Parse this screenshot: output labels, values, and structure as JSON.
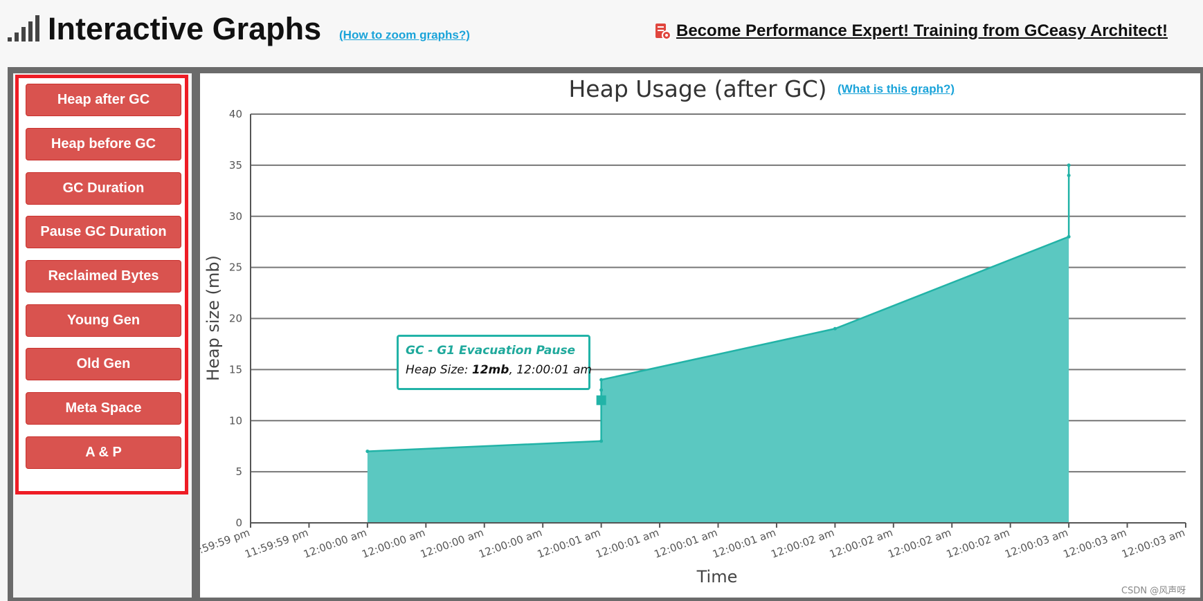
{
  "header": {
    "title": "Interactive Graphs",
    "zoom_link": "(How to zoom graphs?)",
    "promo_link": "Become Performance Expert! Training from GCeasy Architect!",
    "icons": {
      "title": "signal-bars-icon",
      "promo": "training-badge-icon"
    }
  },
  "sidebar": {
    "buttons": [
      {
        "label": "Heap after GC"
      },
      {
        "label": "Heap before GC"
      },
      {
        "label": "GC Duration"
      },
      {
        "label": "Pause GC Duration"
      },
      {
        "label": "Reclaimed Bytes"
      },
      {
        "label": "Young Gen"
      },
      {
        "label": "Old Gen"
      },
      {
        "label": "Meta Space"
      },
      {
        "label": "A & P"
      }
    ],
    "selected": "Heap after GC"
  },
  "chart": {
    "what_link": "(What is this graph?)"
  },
  "tooltip": {
    "title": "GC - G1 Evacuation Pause",
    "label": "Heap Size: ",
    "value": "12mb",
    "time": ", 12:00:01 am"
  },
  "watermark": "CSDN @风声呀",
  "colors": {
    "accent": "#22b3a7",
    "area_fill": "#5bc8c1",
    "button": "#d9534f",
    "highlight_border": "#ee1c25",
    "link": "#1aa3d9"
  },
  "chart_data": {
    "type": "area",
    "title": "Heap Usage (after GC)",
    "xlabel": "Time",
    "ylabel": "Heap size (mb)",
    "ylim": [
      0,
      40
    ],
    "yticks": [
      0,
      5,
      10,
      15,
      20,
      25,
      30,
      35,
      40
    ],
    "xticks": [
      ":59:59 pm",
      "11:59:59 pm",
      "12:00:00 am",
      "12:00:00 am",
      "12:00:00 am",
      "12:00:00 am",
      "12:00:01 am",
      "12:00:01 am",
      "12:00:01 am",
      "12:00:01 am",
      "12:00:02 am",
      "12:00:02 am",
      "12:00:02 am",
      "12:00:02 am",
      "12:00:03 am",
      "12:00:03 am",
      "12:00:03 am"
    ],
    "xlim": [
      0,
      16
    ],
    "grid": true,
    "points": [
      {
        "x": 2,
        "y": 7
      },
      {
        "x": 6,
        "y": 8
      },
      {
        "x": 6,
        "y": 12
      },
      {
        "x": 6,
        "y": 13
      },
      {
        "x": 6,
        "y": 14
      },
      {
        "x": 10,
        "y": 19
      },
      {
        "x": 14,
        "y": 28
      },
      {
        "x": 14,
        "y": 34
      },
      {
        "x": 14,
        "y": 35
      }
    ],
    "highlighted_point": {
      "x": 6,
      "y": 12
    }
  }
}
